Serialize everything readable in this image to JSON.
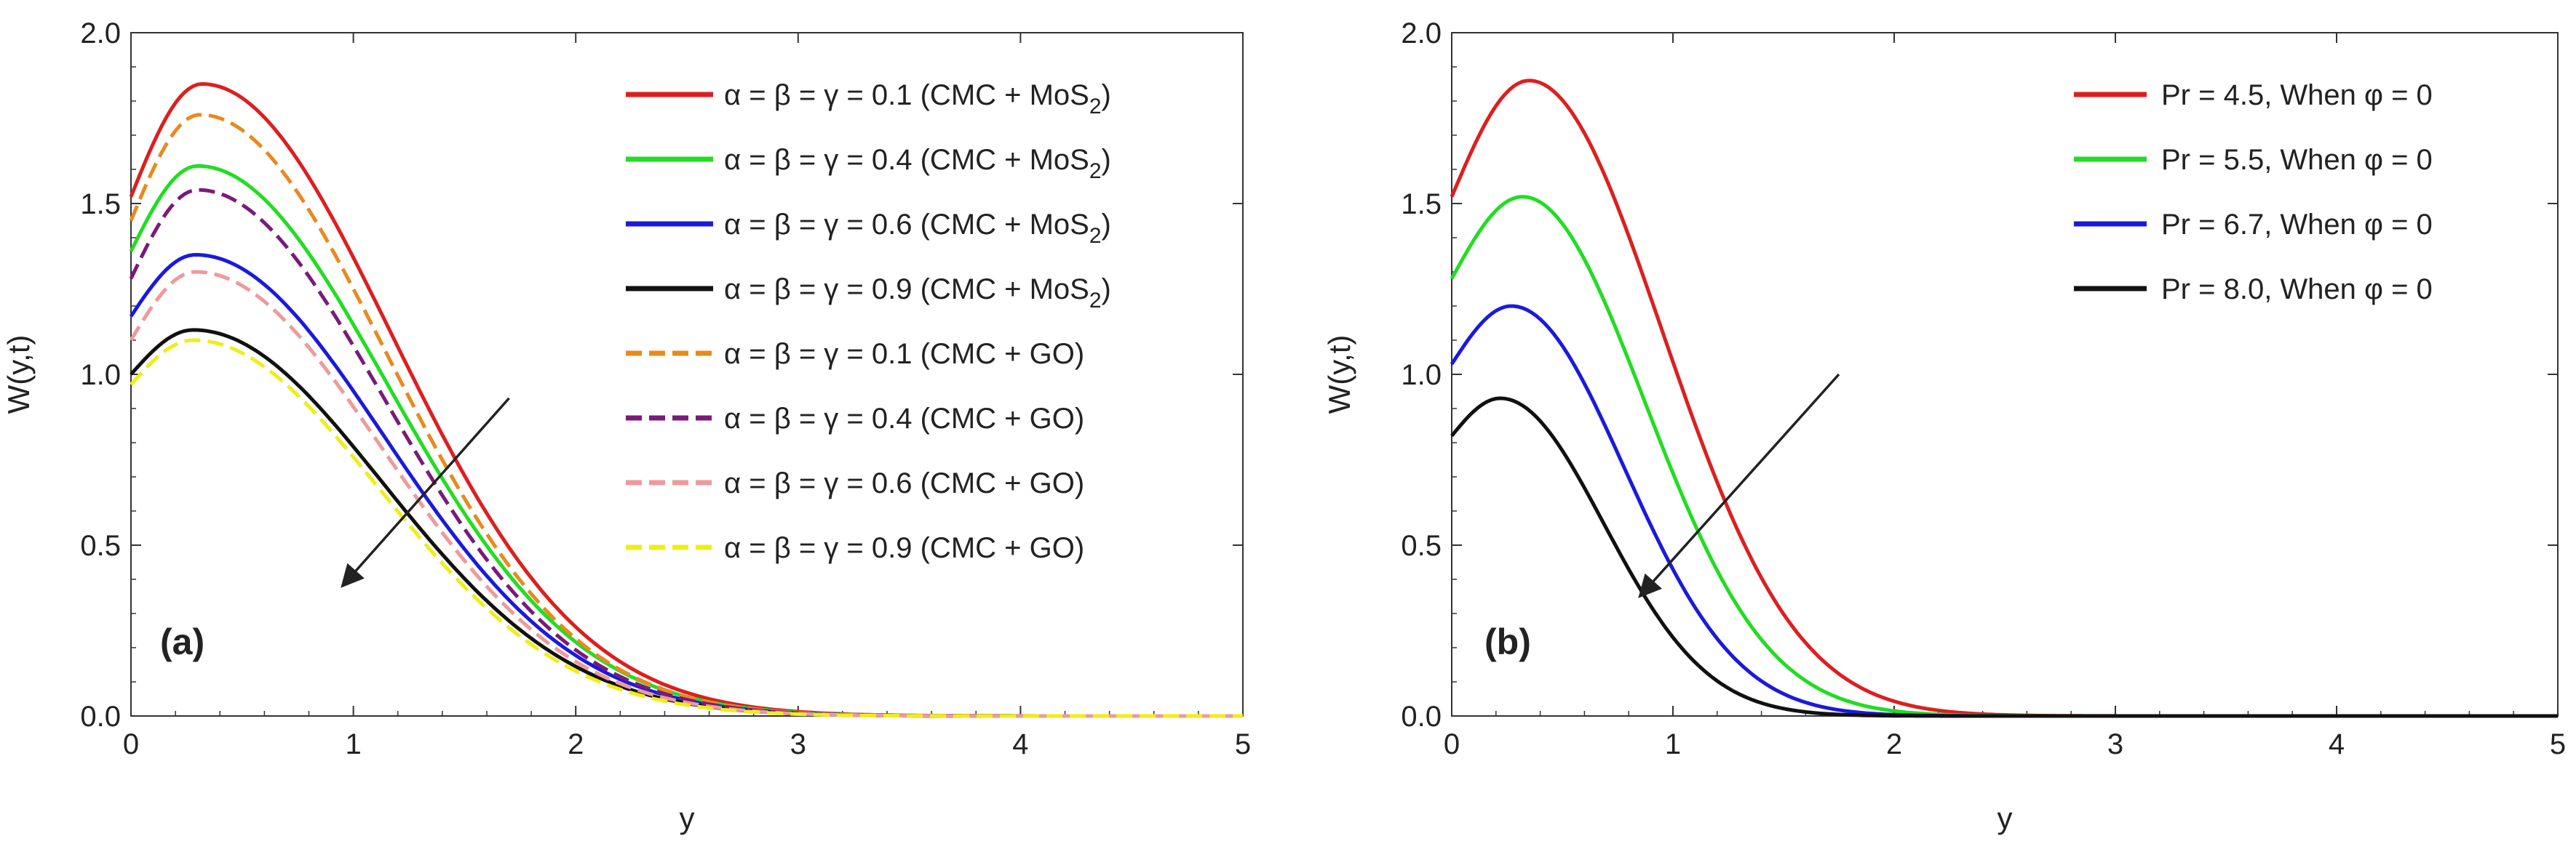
{
  "chart_data": [
    {
      "type": "line",
      "panel_label": "(a)",
      "xlabel": "y",
      "ylabel": "W(y,t)",
      "xlim": [
        0,
        5
      ],
      "ylim": [
        0,
        2.0
      ],
      "x_ticks": [
        "0",
        "1",
        "2",
        "3",
        "4",
        "5"
      ],
      "y_ticks": [
        "0.0",
        "0.5",
        "1.0",
        "1.5",
        "2.0"
      ],
      "legend_position": "top-right",
      "arrow": {
        "from": [
          1.7,
          0.93
        ],
        "to": [
          0.95,
          0.38
        ]
      },
      "series": [
        {
          "name": "α = β = γ = 0.1  (CMC + MoS2)",
          "label_main": "α = β = γ = 0.1  (CMC + MoS",
          "label_sub": "2",
          "label_tail": ")",
          "color": "#dd1f1f",
          "dash": "solid",
          "w0": 1.52,
          "peak_x": 0.32,
          "peak_y": 1.85,
          "decay": 1.2
        },
        {
          "name": "α = β = γ = 0.4  (CMC + MoS2)",
          "label_main": "α = β = γ = 0.4  (CMC + MoS",
          "label_sub": "2",
          "label_tail": ")",
          "color": "#22dd22",
          "dash": "solid",
          "w0": 1.36,
          "peak_x": 0.3,
          "peak_y": 1.61,
          "decay": 1.2
        },
        {
          "name": "α = β = γ = 0.6  (CMC + MoS2)",
          "label_main": "α = β = γ = 0.6  (CMC + MoS",
          "label_sub": "2",
          "label_tail": ")",
          "color": "#1a1add",
          "dash": "solid",
          "w0": 1.17,
          "peak_x": 0.29,
          "peak_y": 1.35,
          "decay": 1.2
        },
        {
          "name": "α = β = γ = 0.9  (CMC + MoS2)",
          "label_main": "α = β = γ = 0.9  (CMC + MoS",
          "label_sub": "2",
          "label_tail": ")",
          "color": "#111111",
          "dash": "solid",
          "w0": 1.0,
          "peak_x": 0.28,
          "peak_y": 1.13,
          "decay": 1.2
        },
        {
          "name": "α = β = γ = 0.1  (CMC + GO)",
          "label_main": "α = β = γ = 0.1  (CMC + GO)",
          "label_sub": "",
          "label_tail": "",
          "color": "#e88a1e",
          "dash": "dashed",
          "w0": 1.45,
          "peak_x": 0.31,
          "peak_y": 1.76,
          "decay": 1.18
        },
        {
          "name": "α = β = γ = 0.4  (CMC + GO)",
          "label_main": "α = β = γ = 0.4  (CMC + GO)",
          "label_sub": "",
          "label_tail": "",
          "color": "#7a1a7a",
          "dash": "dashed",
          "w0": 1.28,
          "peak_x": 0.3,
          "peak_y": 1.54,
          "decay": 1.18
        },
        {
          "name": "α = β = γ = 0.6  (CMC + GO)",
          "label_main": "α = β = γ = 0.6  (CMC + GO)",
          "label_sub": "",
          "label_tail": "",
          "color": "#ee9a9a",
          "dash": "dashed",
          "w0": 1.1,
          "peak_x": 0.29,
          "peak_y": 1.3,
          "decay": 1.18
        },
        {
          "name": "α = β = γ = 0.9  (CMC + GO)",
          "label_main": "α = β = γ = 0.9  (CMC + GO)",
          "label_sub": "",
          "label_tail": "",
          "color": "#eeee1a",
          "dash": "dashed",
          "w0": 0.97,
          "peak_x": 0.28,
          "peak_y": 1.1,
          "decay": 1.18
        }
      ]
    },
    {
      "type": "line",
      "panel_label": "(b)",
      "xlabel": "y",
      "ylabel": "W(y,t)",
      "xlim": [
        0,
        5
      ],
      "ylim": [
        0,
        2.0
      ],
      "x_ticks": [
        "0",
        "1",
        "2",
        "3",
        "4",
        "5"
      ],
      "y_ticks": [
        "0.0",
        "0.5",
        "1.0",
        "1.5",
        "2.0"
      ],
      "legend_position": "top-right",
      "arrow": {
        "from": [
          1.75,
          1.0
        ],
        "to": [
          0.85,
          0.35
        ]
      },
      "series": [
        {
          "name": "Pr = 4.5,  When  φ = 0",
          "label_main": "Pr = 4.5,  When  φ = 0",
          "label_sub": "",
          "label_tail": "",
          "color": "#dd1f1f",
          "dash": "solid",
          "w0": 1.52,
          "peak_x": 0.35,
          "peak_y": 1.86,
          "decay": 0.85
        },
        {
          "name": "Pr = 5.5,  When  φ = 0",
          "label_main": "Pr = 5.5,  When  φ = 0",
          "label_sub": "",
          "label_tail": "",
          "color": "#22dd22",
          "dash": "solid",
          "w0": 1.28,
          "peak_x": 0.32,
          "peak_y": 1.52,
          "decay": 0.78
        },
        {
          "name": "Pr = 6.7,  When  φ = 0",
          "label_main": "Pr = 6.7,  When  φ = 0",
          "label_sub": "",
          "label_tail": "",
          "color": "#1a1add",
          "dash": "solid",
          "w0": 1.03,
          "peak_x": 0.27,
          "peak_y": 1.2,
          "decay": 0.72
        },
        {
          "name": "Pr = 8.0,  When  φ = 0",
          "label_main": "Pr = 8.0,  When  φ = 0",
          "label_sub": "",
          "label_tail": "",
          "color": "#111111",
          "dash": "solid",
          "w0": 0.82,
          "peak_x": 0.22,
          "peak_y": 0.93,
          "decay": 0.66
        }
      ]
    }
  ]
}
